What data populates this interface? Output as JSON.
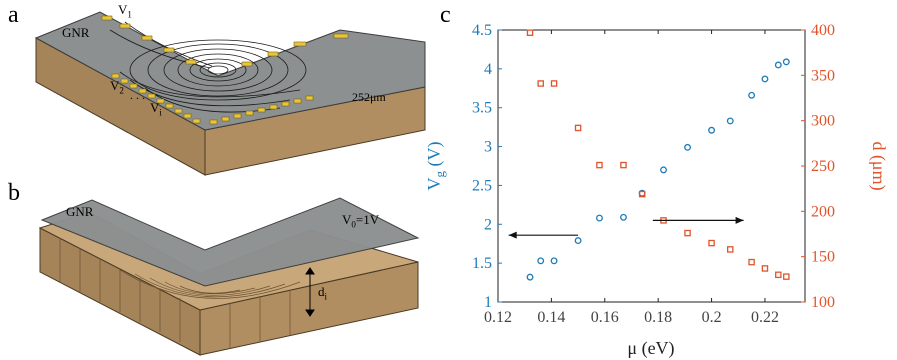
{
  "panels": {
    "a": {
      "label": "a",
      "gnr": "GNR",
      "v1": "V",
      "v1_sub": "1",
      "v2": "V",
      "v2_sub": "2",
      "dots": ". . .",
      "vi": "V",
      "vi_sub": "i",
      "length": "252μm"
    },
    "b": {
      "label": "b",
      "gnr": "GNR",
      "v0": "V",
      "v0_sub": "0",
      "v0_value": "=1V",
      "di": "d",
      "di_sub": "i"
    },
    "c": {
      "label": "c"
    }
  },
  "colors": {
    "left_axis": "#1f7bb8",
    "right_axis": "#e0542a",
    "substrate_top": "#c8a87a",
    "substrate_front": "#a5845a",
    "gnr_sheet": "#8c9090",
    "electrode": "#e8c53a"
  },
  "chart_data": {
    "type": "scatter",
    "xlabel": "μ (eV)",
    "ylabel_left": "V_g (V)",
    "ylabel_left_main": "V",
    "ylabel_left_sub": "g",
    "ylabel_left_unit": " (V)",
    "ylabel_right": "d (μm)",
    "xlim": [
      0.12,
      0.235
    ],
    "ylim_left": [
      1,
      4.5
    ],
    "ylim_right": [
      100,
      400
    ],
    "xticks": [
      "0.12",
      "0.14",
      "0.16",
      "0.18",
      "0.2",
      "0.22"
    ],
    "xtick_values": [
      0.12,
      0.14,
      0.16,
      0.18,
      0.2,
      0.22
    ],
    "yticks_left": [
      "1",
      "1.5",
      "2",
      "2.5",
      "3",
      "3.5",
      "4",
      "4.5"
    ],
    "yticks_left_values": [
      1,
      1.5,
      2,
      2.5,
      3,
      3.5,
      4,
      4.5
    ],
    "yticks_right": [
      "100",
      "150",
      "200",
      "250",
      "300",
      "350",
      "400"
    ],
    "yticks_right_values": [
      100,
      150,
      200,
      250,
      300,
      350,
      400
    ],
    "series": [
      {
        "axis": "left",
        "marker": "circle",
        "color": "#1f7bb8",
        "x": [
          0.132,
          0.136,
          0.141,
          0.15,
          0.158,
          0.167,
          0.174,
          0.182,
          0.191,
          0.2,
          0.207,
          0.215,
          0.22,
          0.225,
          0.228
        ],
        "y": [
          1.32,
          1.53,
          1.53,
          1.79,
          2.08,
          2.09,
          2.4,
          2.7,
          2.99,
          3.21,
          3.33,
          3.66,
          3.87,
          4.05,
          4.09
        ]
      },
      {
        "axis": "right",
        "marker": "square",
        "color": "#e0542a",
        "x": [
          0.132,
          0.136,
          0.141,
          0.15,
          0.158,
          0.167,
          0.174,
          0.182,
          0.191,
          0.2,
          0.207,
          0.215,
          0.22,
          0.225,
          0.228
        ],
        "y": [
          397,
          341,
          341,
          292,
          251,
          251,
          219,
          190,
          176,
          165,
          158,
          144,
          137,
          130,
          128
        ]
      }
    ],
    "arrows": [
      {
        "direction": "left",
        "from": [
          0.15,
          1.86
        ],
        "to": [
          0.124,
          1.86
        ]
      },
      {
        "direction": "right",
        "from": [
          0.178,
          190
        ],
        "to": [
          0.212,
          190
        ]
      }
    ]
  }
}
